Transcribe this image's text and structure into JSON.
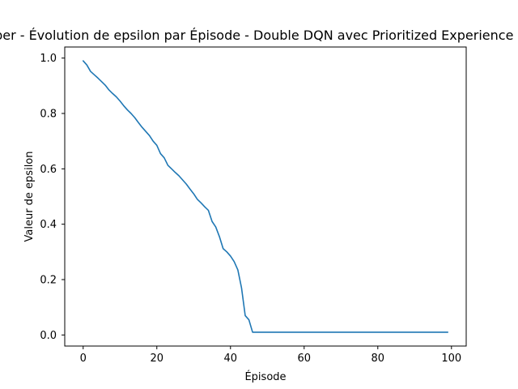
{
  "chart_data": {
    "type": "line",
    "title": "Chomber - Évolution de epsilon par Épisode - Double DQN avec Prioritized Experience Replay",
    "xlabel": "Épisode",
    "ylabel": "Valeur de epsilon",
    "xlim": [
      -5,
      104
    ],
    "ylim": [
      -0.04,
      1.04
    ],
    "xticks": [
      0,
      20,
      40,
      60,
      80,
      100
    ],
    "yticks": [
      0.0,
      0.2,
      0.4,
      0.6,
      0.8,
      1.0
    ],
    "xtick_labels": [
      "0",
      "20",
      "40",
      "60",
      "80",
      "100"
    ],
    "ytick_labels": [
      "0.0",
      "0.2",
      "0.4",
      "0.6",
      "0.8",
      "1.0"
    ],
    "grid": false,
    "line_color": "#1f77b4",
    "series": [
      {
        "x": [
          0,
          1,
          2,
          3,
          4,
          5,
          6,
          7,
          8,
          9,
          10,
          11,
          12,
          13,
          14,
          15,
          16,
          17,
          18,
          19,
          20,
          21,
          22,
          23,
          24,
          25,
          26,
          27,
          28,
          29,
          30,
          31,
          32,
          33,
          34,
          35,
          36,
          37,
          38,
          39,
          40,
          41,
          42,
          43,
          44,
          45,
          46,
          47,
          48,
          49,
          50,
          51,
          52,
          53,
          54,
          55,
          56,
          57,
          58,
          59,
          60,
          61,
          62,
          63,
          64,
          65,
          66,
          67,
          68,
          69,
          70,
          71,
          72,
          73,
          74,
          75,
          76,
          77,
          78,
          79,
          80,
          81,
          82,
          83,
          84,
          85,
          86,
          87,
          88,
          89,
          90,
          91,
          92,
          93,
          94,
          95,
          96,
          97,
          98,
          99
        ],
        "y": [
          0.99,
          0.975,
          0.952,
          0.94,
          0.928,
          0.915,
          0.902,
          0.885,
          0.872,
          0.86,
          0.845,
          0.828,
          0.813,
          0.8,
          0.785,
          0.767,
          0.75,
          0.735,
          0.72,
          0.7,
          0.685,
          0.655,
          0.64,
          0.613,
          0.6,
          0.587,
          0.575,
          0.56,
          0.545,
          0.527,
          0.51,
          0.49,
          0.477,
          0.463,
          0.45,
          0.41,
          0.39,
          0.355,
          0.312,
          0.3,
          0.285,
          0.265,
          0.235,
          0.17,
          0.07,
          0.055,
          0.01,
          0.01,
          0.01,
          0.01,
          0.01,
          0.01,
          0.01,
          0.01,
          0.01,
          0.01,
          0.01,
          0.01,
          0.01,
          0.01,
          0.01,
          0.01,
          0.01,
          0.01,
          0.01,
          0.01,
          0.01,
          0.01,
          0.01,
          0.01,
          0.01,
          0.01,
          0.01,
          0.01,
          0.01,
          0.01,
          0.01,
          0.01,
          0.01,
          0.01,
          0.01,
          0.01,
          0.01,
          0.01,
          0.01,
          0.01,
          0.01,
          0.01,
          0.01,
          0.01,
          0.01,
          0.01,
          0.01,
          0.01,
          0.01,
          0.01,
          0.01,
          0.01,
          0.01,
          0.01
        ]
      }
    ]
  }
}
